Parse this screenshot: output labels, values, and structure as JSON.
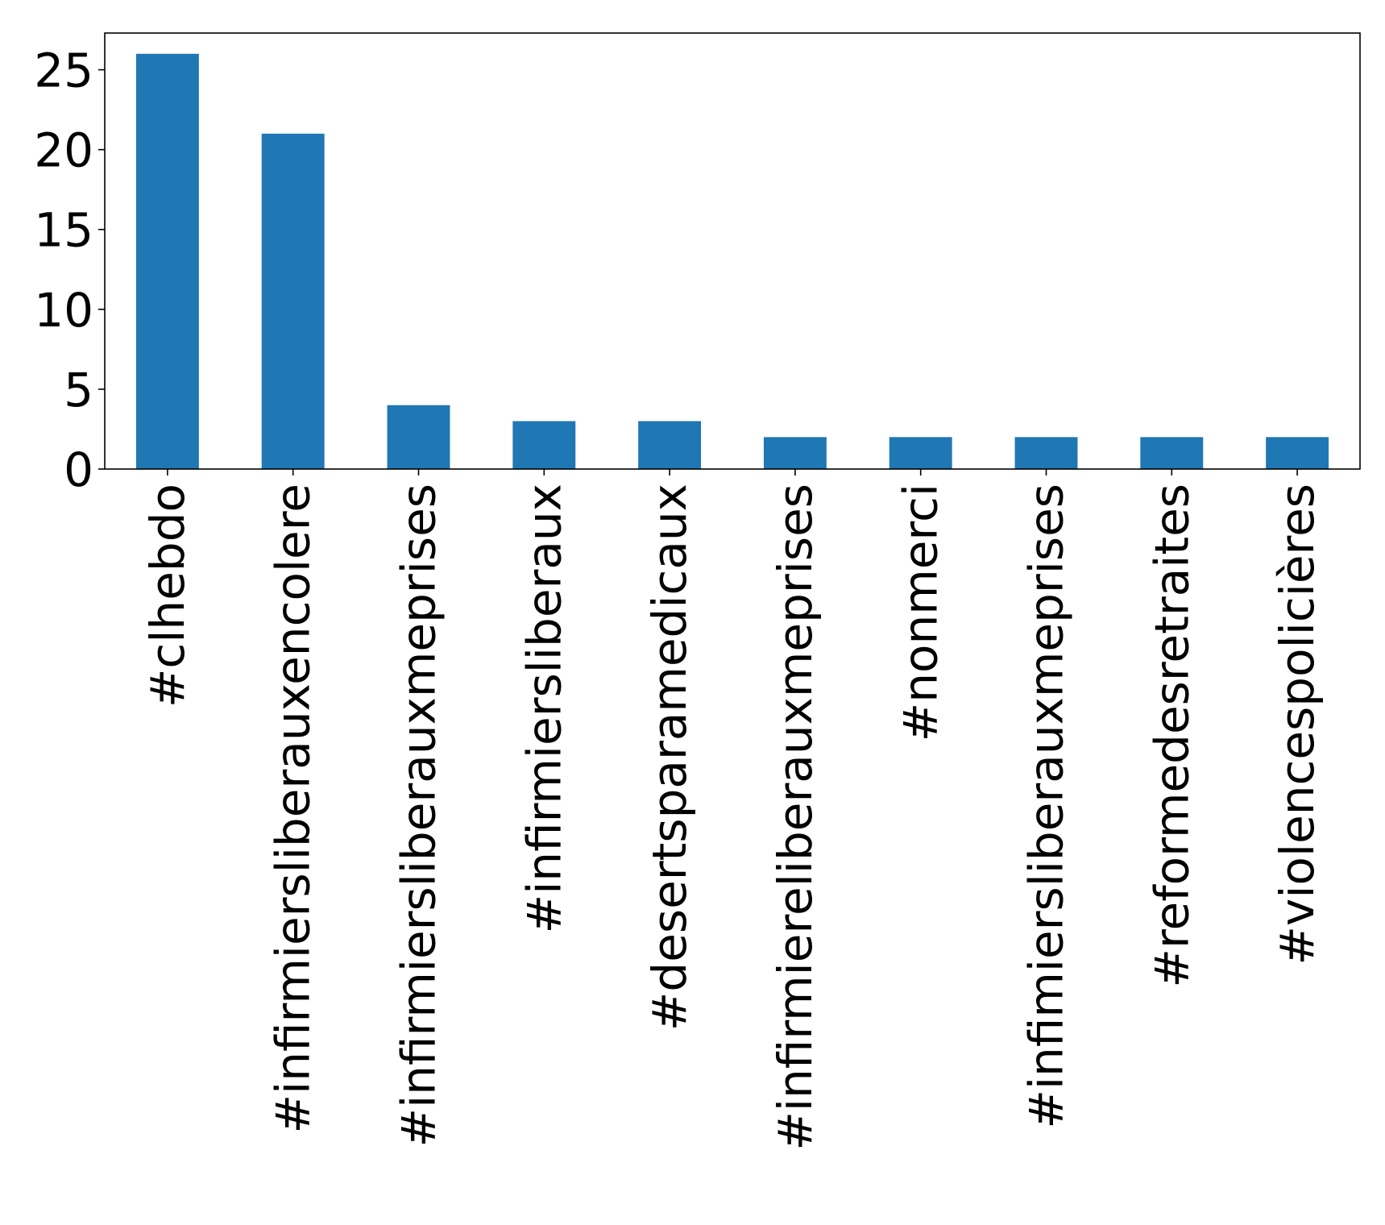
{
  "chart_data": {
    "type": "bar",
    "title": "",
    "xlabel": "",
    "ylabel": "",
    "categories": [
      "#clhebdo",
      "#infirmiersliberauxencolere",
      "#infirmiersliberauxmeprises",
      "#infirmiersliberaux",
      "#desertsparamedicaux",
      "#infirmiereliberauxmeprises",
      "#nonmerci",
      "#infimiersliberauxmeprises",
      "#reformedesretraites",
      "#violencespolicières"
    ],
    "values": [
      26,
      21,
      4,
      3,
      3,
      2,
      2,
      2,
      2,
      2
    ],
    "ylim": [
      0,
      27.3
    ],
    "yticks": [
      0,
      5,
      10,
      15,
      20,
      25
    ],
    "bar_color": "#1f77b4",
    "grid": false,
    "legend": "none"
  }
}
